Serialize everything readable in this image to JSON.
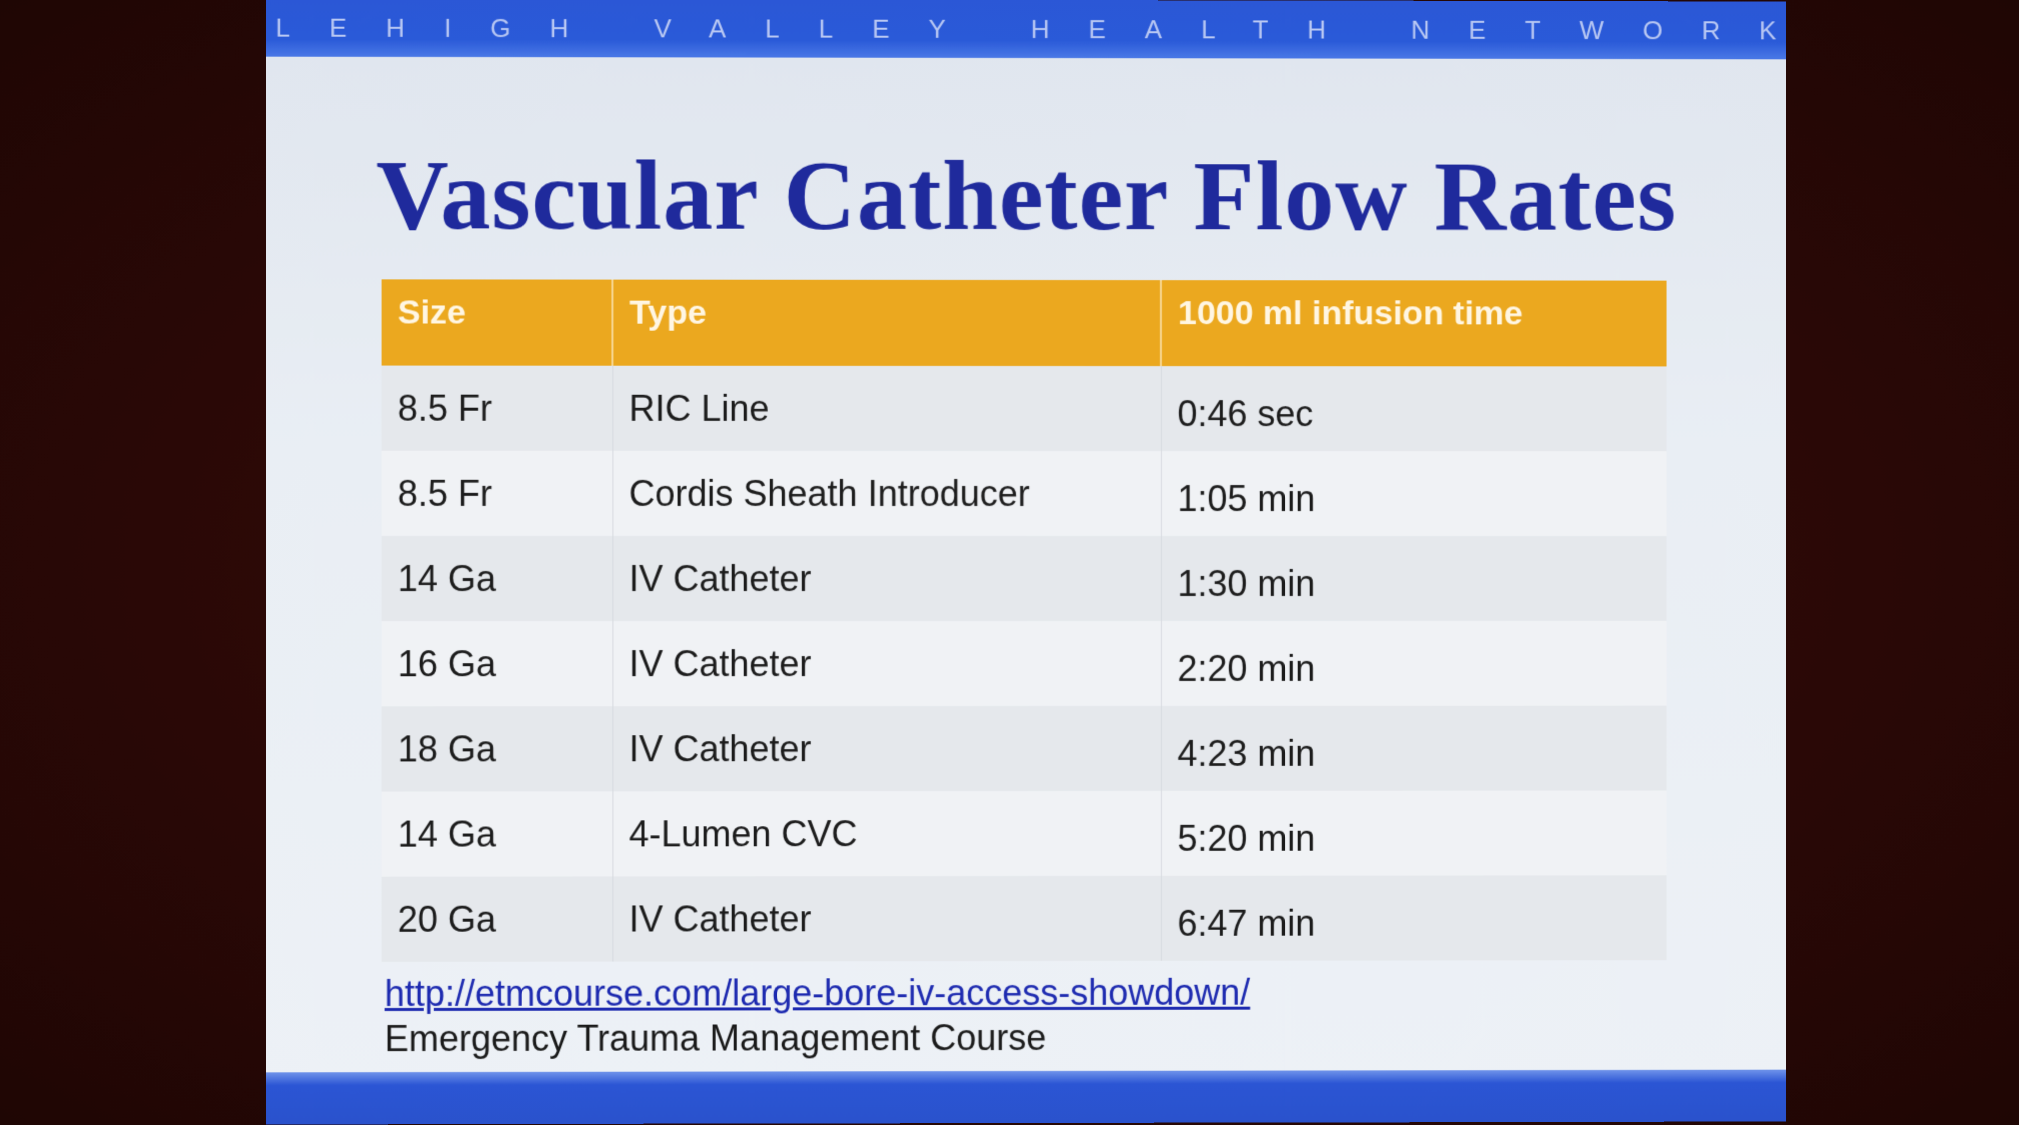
{
  "header": {
    "network_name": "LEHIGH VALLEY HEALTH NETWORK"
  },
  "slide": {
    "title": "Vascular Catheter Flow Rates"
  },
  "table": {
    "columns": [
      "Size",
      "Type",
      "1000 ml infusion time"
    ],
    "rows": [
      {
        "size": "8.5 Fr",
        "type": "RIC Line",
        "time": "0:46 sec"
      },
      {
        "size": "8.5 Fr",
        "type": "Cordis Sheath Introducer",
        "time": "1:05 min"
      },
      {
        "size": "14 Ga",
        "type": "IV Catheter",
        "time": "1:30 min"
      },
      {
        "size": "16 Ga",
        "type": "IV Catheter",
        "time": "2:20 min"
      },
      {
        "size": "18 Ga",
        "type": "IV Catheter",
        "time": "4:23 min"
      },
      {
        "size": "14 Ga",
        "type": "4-Lumen CVC",
        "time": "5:20 min"
      },
      {
        "size": "20 Ga",
        "type": "IV Catheter",
        "time": "6:47 min"
      }
    ]
  },
  "footer": {
    "link": "http://etmcourse.com/large-bore-iv-access-showdown/",
    "source": "Emergency Trauma Management Course"
  },
  "colors": {
    "header_bar": "#2b57d6",
    "title": "#1f2a9c",
    "table_header": "#eba81f",
    "link": "#1d2ab0"
  }
}
